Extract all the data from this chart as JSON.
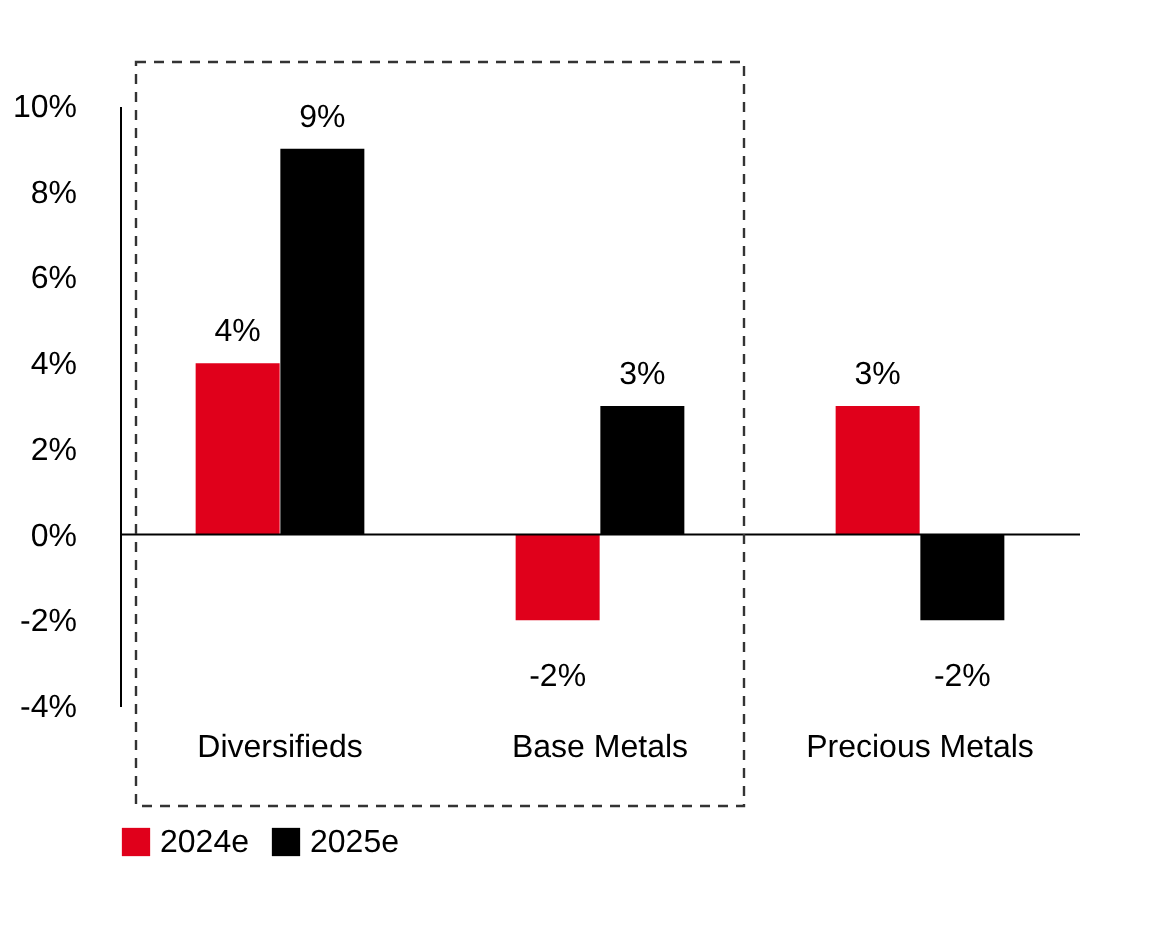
{
  "chart_data": {
    "type": "bar",
    "categories": [
      "Diversifieds",
      "Base Metals",
      "Precious Metals"
    ],
    "series": [
      {
        "name": "2024e",
        "color": "#e0001b",
        "values": [
          4,
          -2,
          3
        ],
        "value_labels": [
          "4%",
          "-2%",
          "3%"
        ]
      },
      {
        "name": "2025e",
        "color": "#000000",
        "values": [
          9,
          3,
          -2
        ],
        "value_labels": [
          "9%",
          "3%",
          "-2%"
        ]
      }
    ],
    "ylim": [
      -4,
      10
    ],
    "yticks": [
      {
        "value": -4,
        "label": "-4%"
      },
      {
        "value": -2,
        "label": "-2%"
      },
      {
        "value": 0,
        "label": "0%"
      },
      {
        "value": 2,
        "label": "2%"
      },
      {
        "value": 4,
        "label": "4%"
      },
      {
        "value": 6,
        "label": "6%"
      },
      {
        "value": 8,
        "label": "8%"
      },
      {
        "value": 10,
        "label": "10%"
      }
    ],
    "ref_lines": [
      {
        "axis": "y",
        "value": 0,
        "color": "#000000"
      }
    ],
    "grid": false,
    "legend": "bottom"
  }
}
